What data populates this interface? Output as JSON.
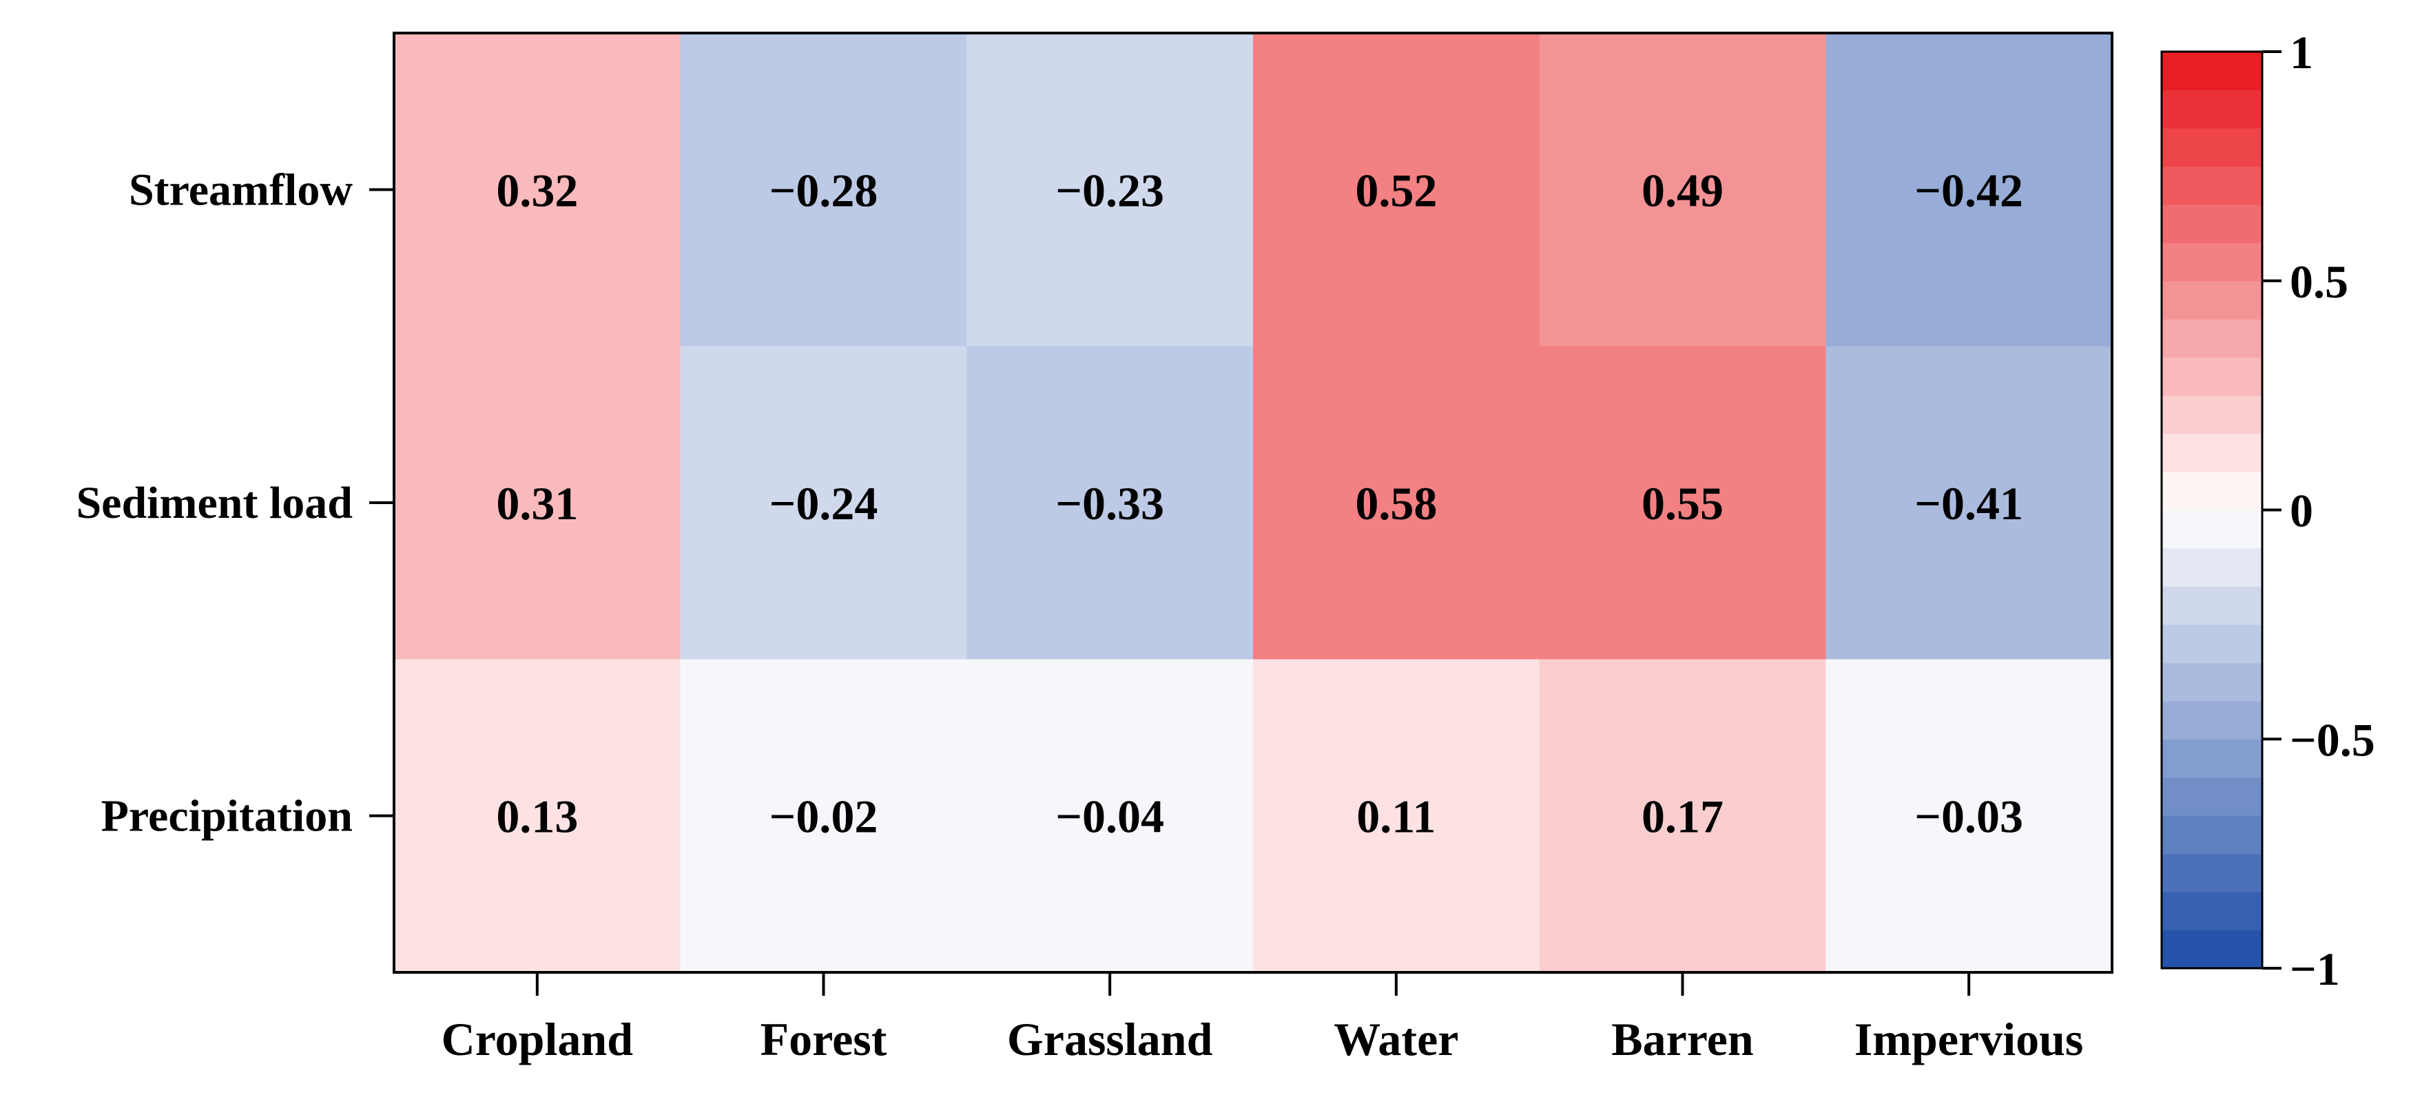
{
  "chart_data": {
    "type": "heatmap",
    "title": "",
    "xlabel": "",
    "ylabel": "",
    "x_categories": [
      "Cropland",
      "Forest",
      "Grassland",
      "Water",
      "Barren",
      "Impervious"
    ],
    "y_categories": [
      "Streamflow",
      "Sediment load",
      "Precipitation"
    ],
    "values": [
      [
        0.32,
        -0.28,
        -0.23,
        0.52,
        0.49,
        -0.42
      ],
      [
        0.31,
        -0.24,
        -0.33,
        0.58,
        0.55,
        -0.41
      ],
      [
        0.13,
        -0.02,
        -0.04,
        0.11,
        0.17,
        -0.03
      ]
    ],
    "value_labels": [
      [
        "0.32",
        "−0.28",
        "−0.23",
        "0.52",
        "0.49",
        "−0.42"
      ],
      [
        "0.31",
        "−0.24",
        "−0.33",
        "0.58",
        "0.55",
        "−0.41"
      ],
      [
        "0.13",
        "−0.02",
        "−0.04",
        "0.11",
        "0.17",
        "−0.03"
      ]
    ],
    "colorbar": {
      "range": [
        -1,
        1
      ],
      "ticks": [
        1,
        0.5,
        0,
        -0.5,
        -1
      ],
      "tick_labels": [
        "1",
        "0.5",
        "0",
        "−0.5",
        "−1"
      ],
      "steps": 24,
      "low_color": "#1c4aa6",
      "mid_color": "#ffffff",
      "high_color": "#e8141a"
    },
    "legend": "right"
  }
}
